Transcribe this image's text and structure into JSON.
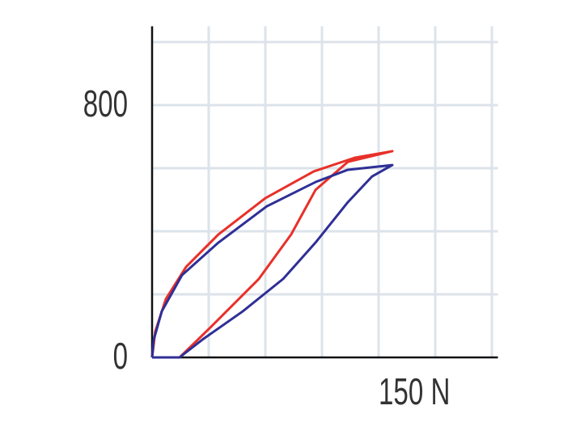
{
  "chart_data": {
    "type": "line",
    "xlim": [
      0,
      229
    ],
    "ylim": [
      0,
      1050
    ],
    "xticks": [
      {
        "value": 150,
        "label": "150 N"
      }
    ],
    "yticks": [
      0,
      800
    ],
    "xgrid": [
      37.5,
      75,
      112.5,
      150,
      187.5,
      225
    ],
    "ygrid": [
      200,
      400,
      600,
      800,
      1000
    ],
    "series": [
      {
        "color": "#e8302a",
        "x": [
          0,
          18.2,
          38.6,
          70.7,
          92.1,
          108.2,
          129.6,
          159.1,
          134.1,
          107.1,
          75,
          43.9,
          22.5,
          9.1,
          2.1,
          0
        ],
        "values": [
          0,
          0,
          95,
          249,
          390,
          531,
          620,
          654,
          633,
          590,
          505,
          390,
          287,
          185,
          82,
          0
        ]
      },
      {
        "color": "#2e2f96",
        "x": [
          0,
          18.2,
          33.2,
          60,
          86.8,
          108.2,
          129.6,
          145.7,
          159.1,
          129.6,
          108.2,
          75.9,
          43.9,
          19.8,
          6.4,
          1.1,
          0
        ],
        "values": [
          0,
          0,
          56,
          146,
          249,
          364,
          492,
          574,
          610,
          595,
          556,
          479,
          364,
          261,
          146,
          56,
          0
        ]
      }
    ]
  }
}
